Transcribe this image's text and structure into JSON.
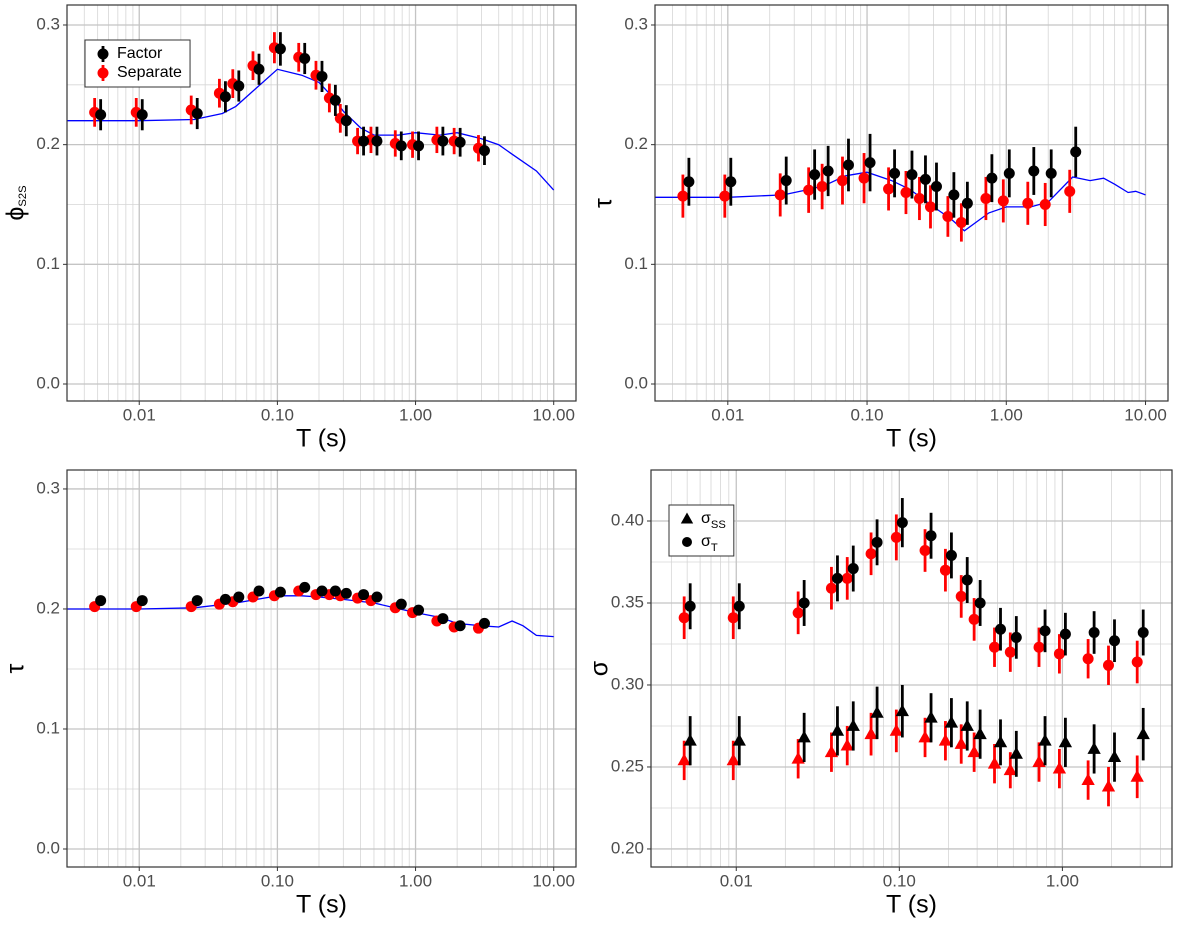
{
  "chart_data": [
    {
      "type": "errorbar",
      "xlabel": "T (s)",
      "ylabel": "ϕ",
      "ylabel_subscript": "S2S",
      "xscale": "log",
      "xlim": [
        0.003,
        14.5
      ],
      "xticks": [
        0.01,
        {
          "value": 0.1,
          "label": "0.10"
        },
        {
          "value": 1,
          "label": "1.00"
        },
        {
          "value": 10,
          "label": "10.00"
        }
      ],
      "xminor": [
        0.003,
        0.004,
        0.005,
        0.006,
        0.007,
        0.008,
        0.009,
        0.02,
        0.03,
        0.04,
        0.05,
        0.06,
        0.07,
        0.08,
        0.09,
        0.2,
        0.3,
        0.4,
        0.5,
        0.6,
        0.7,
        0.8,
        0.9,
        2,
        3,
        4,
        5,
        6,
        7,
        8,
        9
      ],
      "ylim": [
        -0.0142,
        0.3167
      ],
      "yticks": [
        {
          "value": 0,
          "label": "0.0"
        },
        0.1,
        0.2,
        0.3
      ],
      "yminor": [
        0.05,
        0.15,
        0.25
      ],
      "grid": true,
      "legend": "top-left",
      "x": [
        0.005,
        0.01,
        0.025,
        0.04,
        0.05,
        0.07,
        0.1,
        0.15,
        0.2,
        0.25,
        0.3,
        0.4,
        0.5,
        0.75,
        1,
        1.5,
        2,
        3
      ],
      "series": [
        {
          "name": "Factor",
          "color": "#000000",
          "values": [
            0.225,
            0.225,
            0.226,
            0.24,
            0.249,
            0.263,
            0.28,
            0.272,
            0.257,
            0.237,
            0.22,
            0.203,
            0.203,
            0.199,
            0.199,
            0.203,
            0.202,
            0.195
          ],
          "errors": [
            0.013,
            0.013,
            0.013,
            0.013,
            0.013,
            0.013,
            0.014,
            0.013,
            0.013,
            0.013,
            0.013,
            0.012,
            0.012,
            0.012,
            0.012,
            0.012,
            0.012,
            0.012
          ]
        },
        {
          "name": "Separate",
          "color": "#ff0000",
          "values": [
            0.227,
            0.227,
            0.229,
            0.243,
            0.251,
            0.266,
            0.281,
            0.273,
            0.258,
            0.239,
            0.222,
            0.203,
            0.204,
            0.201,
            0.2,
            0.204,
            0.203,
            0.197
          ],
          "errors": [
            0.012,
            0.012,
            0.012,
            0.012,
            0.012,
            0.012,
            0.013,
            0.012,
            0.012,
            0.012,
            0.012,
            0.011,
            0.011,
            0.011,
            0.011,
            0.011,
            0.011,
            0.011
          ]
        }
      ],
      "line": {
        "color": "#0000ff",
        "x": [
          0.003,
          0.005,
          0.01,
          0.025,
          0.04,
          0.05,
          0.07,
          0.1,
          0.15,
          0.2,
          0.25,
          0.3,
          0.4,
          0.5,
          0.75,
          1,
          1.5,
          2,
          3,
          4,
          5,
          7.5,
          10
        ],
        "values": [
          0.22,
          0.22,
          0.22,
          0.221,
          0.226,
          0.232,
          0.247,
          0.263,
          0.258,
          0.252,
          0.24,
          0.228,
          0.214,
          0.208,
          0.208,
          0.21,
          0.208,
          0.21,
          0.205,
          0.2,
          0.192,
          0.178,
          0.162
        ]
      }
    },
    {
      "type": "errorbar",
      "xlabel": "T (s)",
      "ylabel": "τ",
      "xscale": "log",
      "xlim": [
        0.003,
        14.5
      ],
      "xticks": [
        0.01,
        {
          "value": 0.1,
          "label": "0.10"
        },
        {
          "value": 1,
          "label": "1.00"
        },
        {
          "value": 10,
          "label": "10.00"
        }
      ],
      "xminor": [
        0.003,
        0.004,
        0.005,
        0.006,
        0.007,
        0.008,
        0.009,
        0.02,
        0.03,
        0.04,
        0.05,
        0.06,
        0.07,
        0.08,
        0.09,
        0.2,
        0.3,
        0.4,
        0.5,
        0.6,
        0.7,
        0.8,
        0.9,
        2,
        3,
        4,
        5,
        6,
        7,
        8,
        9
      ],
      "ylim": [
        -0.0142,
        0.3167
      ],
      "yticks": [
        {
          "value": 0,
          "label": "0.0"
        },
        0.1,
        0.2,
        0.3
      ],
      "yminor": [
        0.05,
        0.15,
        0.25
      ],
      "grid": true,
      "x": [
        0.005,
        0.01,
        0.025,
        0.04,
        0.05,
        0.07,
        0.1,
        0.15,
        0.2,
        0.25,
        0.3,
        0.4,
        0.5,
        0.75,
        1,
        1.5,
        2,
        3
      ],
      "series": [
        {
          "color": "#000000",
          "values": [
            0.169,
            0.169,
            0.17,
            0.175,
            0.178,
            0.183,
            0.185,
            0.176,
            0.175,
            0.171,
            0.165,
            0.158,
            0.151,
            0.172,
            0.176,
            0.178,
            0.176,
            0.194
          ],
          "errors": [
            0.02,
            0.02,
            0.02,
            0.021,
            0.021,
            0.022,
            0.024,
            0.02,
            0.02,
            0.02,
            0.02,
            0.019,
            0.018,
            0.02,
            0.02,
            0.02,
            0.02,
            0.021
          ]
        },
        {
          "color": "#ff0000",
          "values": [
            0.157,
            0.157,
            0.158,
            0.162,
            0.165,
            0.17,
            0.172,
            0.163,
            0.16,
            0.155,
            0.148,
            0.14,
            0.135,
            0.155,
            0.153,
            0.151,
            0.15,
            0.161
          ],
          "errors": [
            0.018,
            0.018,
            0.018,
            0.019,
            0.019,
            0.02,
            0.021,
            0.018,
            0.018,
            0.018,
            0.018,
            0.017,
            0.016,
            0.018,
            0.018,
            0.018,
            0.018,
            0.018
          ]
        }
      ],
      "line": {
        "color": "#0000ff",
        "x": [
          0.003,
          0.005,
          0.01,
          0.025,
          0.04,
          0.05,
          0.07,
          0.1,
          0.15,
          0.2,
          0.25,
          0.3,
          0.4,
          0.5,
          0.75,
          1,
          1.5,
          2,
          3,
          4,
          5,
          6,
          7.5,
          8.5,
          10
        ],
        "values": [
          0.156,
          0.156,
          0.156,
          0.158,
          0.163,
          0.166,
          0.174,
          0.177,
          0.17,
          0.163,
          0.155,
          0.148,
          0.138,
          0.128,
          0.143,
          0.148,
          0.148,
          0.152,
          0.173,
          0.17,
          0.172,
          0.167,
          0.16,
          0.161,
          0.158
        ]
      }
    },
    {
      "type": "errorbar",
      "xlabel": "T (s)",
      "ylabel": "τ",
      "xscale": "log",
      "xlim": [
        0.003,
        14.5
      ],
      "xticks": [
        0.01,
        {
          "value": 0.1,
          "label": "0.10"
        },
        {
          "value": 1,
          "label": "1.00"
        },
        {
          "value": 10,
          "label": "10.00"
        }
      ],
      "xminor": [
        0.003,
        0.004,
        0.005,
        0.006,
        0.007,
        0.008,
        0.009,
        0.02,
        0.03,
        0.04,
        0.05,
        0.06,
        0.07,
        0.08,
        0.09,
        0.2,
        0.3,
        0.4,
        0.5,
        0.6,
        0.7,
        0.8,
        0.9,
        2,
        3,
        4,
        5,
        6,
        7,
        8,
        9
      ],
      "ylim": [
        -0.015,
        0.3158
      ],
      "yticks": [
        {
          "value": 0,
          "label": "0.0"
        },
        0.1,
        0.2,
        0.3
      ],
      "yminor": [
        0.05,
        0.15,
        0.25
      ],
      "grid": true,
      "x": [
        0.005,
        0.01,
        0.025,
        0.04,
        0.05,
        0.07,
        0.1,
        0.15,
        0.2,
        0.25,
        0.3,
        0.4,
        0.5,
        0.75,
        1,
        1.5,
        2,
        3
      ],
      "series": [
        {
          "color": "#000000",
          "values": [
            0.207,
            0.207,
            0.207,
            0.208,
            0.21,
            0.215,
            0.214,
            0.218,
            0.215,
            0.215,
            0.213,
            0.212,
            0.21,
            0.204,
            0.199,
            0.192,
            0.186,
            0.188
          ],
          "errors": [
            0.002,
            0.002,
            0.002,
            0.002,
            0.002,
            0.002,
            0.002,
            0.002,
            0.002,
            0.002,
            0.002,
            0.002,
            0.002,
            0.002,
            0.002,
            0.002,
            0.002,
            0.002
          ]
        },
        {
          "color": "#ff0000",
          "values": [
            0.202,
            0.202,
            0.202,
            0.204,
            0.206,
            0.21,
            0.211,
            0.215,
            0.212,
            0.212,
            0.211,
            0.209,
            0.207,
            0.201,
            0.197,
            0.19,
            0.185,
            0.184
          ],
          "errors": [
            0.002,
            0.002,
            0.002,
            0.002,
            0.002,
            0.002,
            0.002,
            0.002,
            0.002,
            0.002,
            0.002,
            0.002,
            0.002,
            0.002,
            0.002,
            0.002,
            0.002,
            0.002
          ]
        }
      ],
      "line": {
        "color": "#0000ff",
        "x": [
          0.003,
          0.01,
          0.025,
          0.05,
          0.1,
          0.15,
          0.2,
          0.3,
          0.5,
          1,
          1.5,
          2,
          3,
          4,
          5,
          6,
          7.5,
          10
        ],
        "values": [
          0.2,
          0.2,
          0.201,
          0.205,
          0.211,
          0.211,
          0.21,
          0.208,
          0.205,
          0.197,
          0.193,
          0.188,
          0.186,
          0.185,
          0.19,
          0.186,
          0.178,
          0.177
        ]
      }
    },
    {
      "type": "shape-errorbar",
      "xlabel": "T (s)",
      "ylabel": "σ",
      "xscale": "log",
      "xlim": [
        0.003,
        4.7
      ],
      "xticks": [
        0.01,
        {
          "value": 0.1,
          "label": "0.10"
        },
        {
          "value": 1,
          "label": "1.00"
        }
      ],
      "xminor": [
        0.003,
        0.004,
        0.005,
        0.006,
        0.007,
        0.008,
        0.009,
        0.02,
        0.03,
        0.04,
        0.05,
        0.06,
        0.07,
        0.08,
        0.09,
        0.2,
        0.3,
        0.4,
        0.5,
        0.6,
        0.7,
        0.8,
        0.9,
        2,
        3,
        4
      ],
      "ylim": [
        0.189,
        0.4311
      ],
      "yticks": [
        {
          "value": 0.2,
          "label": "0.20"
        },
        0.25,
        {
          "value": 0.3,
          "label": "0.30"
        },
        0.35,
        {
          "value": 0.4,
          "label": "0.40"
        }
      ],
      "yminor": [
        0.225,
        0.275,
        0.325,
        0.375
      ],
      "grid": true,
      "legend": "top-left",
      "x": [
        0.005,
        0.01,
        0.025,
        0.04,
        0.05,
        0.07,
        0.1,
        0.15,
        0.2,
        0.25,
        0.3,
        0.4,
        0.5,
        0.75,
        1,
        1.5,
        2,
        3
      ],
      "series": [
        {
          "name": "σ",
          "subscript": "SS",
          "shape": "triangle",
          "groups": [
            {
              "color": "#000000",
              "values": [
                0.266,
                0.266,
                0.268,
                0.272,
                0.275,
                0.283,
                0.284,
                0.28,
                0.277,
                0.275,
                0.27,
                0.265,
                0.258,
                0.266,
                0.265,
                0.261,
                0.256,
                0.27
              ],
              "errors": [
                0.015,
                0.015,
                0.015,
                0.015,
                0.015,
                0.016,
                0.016,
                0.015,
                0.015,
                0.015,
                0.015,
                0.014,
                0.014,
                0.015,
                0.015,
                0.015,
                0.015,
                0.016
              ]
            },
            {
              "color": "#ff0000",
              "values": [
                0.254,
                0.254,
                0.255,
                0.259,
                0.263,
                0.27,
                0.272,
                0.268,
                0.266,
                0.264,
                0.259,
                0.252,
                0.248,
                0.253,
                0.249,
                0.242,
                0.238,
                0.244
              ],
              "errors": [
                0.012,
                0.012,
                0.012,
                0.012,
                0.012,
                0.013,
                0.013,
                0.012,
                0.012,
                0.012,
                0.012,
                0.012,
                0.011,
                0.012,
                0.012,
                0.012,
                0.012,
                0.013
              ]
            }
          ]
        },
        {
          "name": "σ",
          "subscript": "T",
          "shape": "circle",
          "groups": [
            {
              "color": "#000000",
              "values": [
                0.348,
                0.348,
                0.35,
                0.365,
                0.371,
                0.387,
                0.399,
                0.391,
                0.379,
                0.364,
                0.35,
                0.334,
                0.329,
                0.333,
                0.331,
                0.332,
                0.327,
                0.332
              ],
              "errors": [
                0.014,
                0.014,
                0.014,
                0.014,
                0.014,
                0.014,
                0.015,
                0.014,
                0.014,
                0.014,
                0.014,
                0.013,
                0.013,
                0.013,
                0.013,
                0.013,
                0.013,
                0.014
              ]
            },
            {
              "color": "#ff0000",
              "values": [
                0.341,
                0.341,
                0.344,
                0.359,
                0.365,
                0.38,
                0.39,
                0.382,
                0.37,
                0.354,
                0.34,
                0.323,
                0.32,
                0.323,
                0.319,
                0.316,
                0.312,
                0.314
              ],
              "errors": [
                0.013,
                0.013,
                0.013,
                0.013,
                0.013,
                0.013,
                0.014,
                0.013,
                0.013,
                0.013,
                0.013,
                0.012,
                0.012,
                0.012,
                0.012,
                0.012,
                0.012,
                0.013
              ]
            }
          ]
        }
      ]
    }
  ]
}
